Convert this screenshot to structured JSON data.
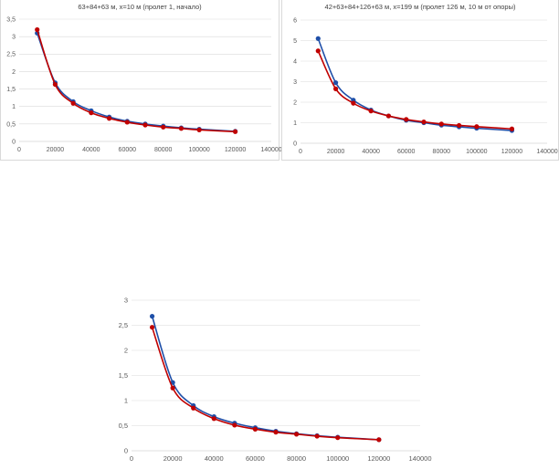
{
  "colors": {
    "series_blue": "#1f4fa8",
    "series_red": "#c00000",
    "grid": "#d9d9d9",
    "axis_text": "#595959"
  },
  "chart_data": [
    {
      "type": "line",
      "title": "63+84+63 м, x=10 м (пролет 1, начало)",
      "xlim": [
        0,
        140000
      ],
      "ylim": [
        0,
        3.5
      ],
      "x_ticks": [
        "0",
        "20000",
        "40000",
        "60000",
        "80000",
        "100000",
        "120000",
        "140000"
      ],
      "y_ticks": [
        "0",
        "0,5",
        "1",
        "1,5",
        "2",
        "2,5",
        "3",
        "3,5"
      ],
      "grid": "horizontal",
      "x": [
        10000,
        20000,
        30000,
        40000,
        50000,
        60000,
        70000,
        80000,
        90000,
        100000,
        120000
      ],
      "series": [
        {
          "color": "#1f4fa8",
          "values": [
            3.1,
            1.68,
            1.14,
            0.88,
            0.7,
            0.58,
            0.5,
            0.44,
            0.39,
            0.35,
            0.29
          ]
        },
        {
          "color": "#c00000",
          "values": [
            3.2,
            1.63,
            1.09,
            0.82,
            0.66,
            0.55,
            0.47,
            0.41,
            0.37,
            0.33,
            0.28
          ]
        }
      ]
    },
    {
      "type": "line",
      "title": "42+63+84+126+63 м, x=199 м (пролет 126 м, 10 м от опоры)",
      "xlim": [
        0,
        140000
      ],
      "ylim": [
        0,
        6
      ],
      "x_ticks": [
        "0",
        "20000",
        "40000",
        "60000",
        "80000",
        "100000",
        "120000",
        "140000"
      ],
      "y_ticks": [
        "0",
        "1",
        "2",
        "3",
        "4",
        "5",
        "6"
      ],
      "grid": "horizontal",
      "x": [
        10000,
        20000,
        30000,
        40000,
        50000,
        60000,
        70000,
        80000,
        90000,
        100000,
        120000
      ],
      "series": [
        {
          "color": "#1f4fa8",
          "values": [
            5.1,
            2.95,
            2.1,
            1.62,
            1.33,
            1.12,
            1.0,
            0.88,
            0.8,
            0.73,
            0.62
          ]
        },
        {
          "color": "#c00000",
          "values": [
            4.5,
            2.65,
            1.95,
            1.57,
            1.33,
            1.16,
            1.04,
            0.94,
            0.87,
            0.81,
            0.7
          ]
        }
      ]
    },
    {
      "type": "line",
      "title": "",
      "xlim": [
        0,
        140000
      ],
      "ylim": [
        0,
        3
      ],
      "x_ticks": [
        "0",
        "20000",
        "40000",
        "60000",
        "80000",
        "100000",
        "120000",
        "140000"
      ],
      "y_ticks": [
        "0",
        "0,5",
        "1",
        "1,5",
        "2",
        "2,5",
        "3"
      ],
      "grid": "horizontal",
      "x": [
        10000,
        20000,
        30000,
        40000,
        50000,
        60000,
        70000,
        80000,
        90000,
        100000,
        120000
      ],
      "series": [
        {
          "color": "#1f4fa8",
          "values": [
            2.68,
            1.36,
            0.9,
            0.68,
            0.55,
            0.46,
            0.39,
            0.34,
            0.3,
            0.27,
            0.22
          ]
        },
        {
          "color": "#c00000",
          "values": [
            2.46,
            1.25,
            0.85,
            0.64,
            0.51,
            0.43,
            0.37,
            0.33,
            0.29,
            0.26,
            0.22
          ]
        }
      ]
    }
  ]
}
